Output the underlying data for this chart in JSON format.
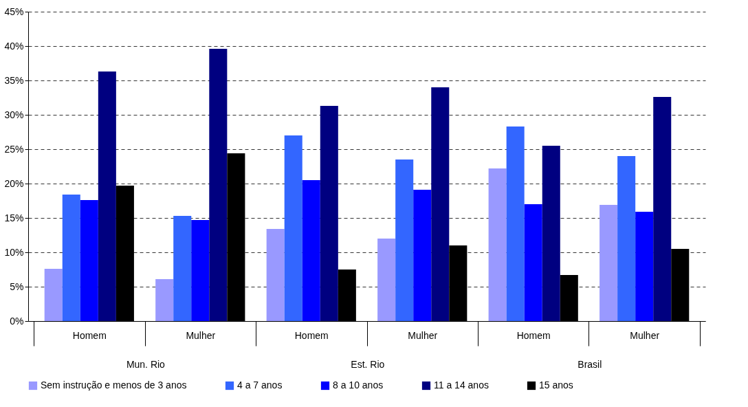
{
  "chart_data": {
    "type": "bar",
    "categories": [
      "Homem",
      "Mulher",
      "Homem",
      "Mulher",
      "Homem",
      "Mulher"
    ],
    "annotations": [
      "Mun. Rio",
      "Est. Rio",
      "Brasil"
    ],
    "series": [
      {
        "name": "Sem instrução e menos de 3 anos",
        "color": "#9999ff",
        "values": [
          7.6,
          6.1,
          13.4,
          12.0,
          22.2,
          16.9
        ]
      },
      {
        "name": "4 a 7 anos",
        "color": "#3366ff",
        "values": [
          18.4,
          15.3,
          27.0,
          23.5,
          28.3,
          24.0
        ]
      },
      {
        "name": "8 a 10 anos",
        "color": "#0000ff",
        "values": [
          17.6,
          14.7,
          20.5,
          19.1,
          17.0,
          15.9
        ]
      },
      {
        "name": "11 a 14 anos",
        "color": "#000080",
        "values": [
          36.3,
          39.6,
          31.3,
          34.0,
          25.5,
          32.6
        ]
      },
      {
        "name": "15 anos",
        "color": "#000000",
        "values": [
          19.7,
          24.4,
          7.5,
          11.0,
          6.7,
          10.5
        ]
      }
    ],
    "ylim": [
      0,
      45
    ],
    "yticks": [
      {
        "value": 0,
        "label": "0%"
      },
      {
        "value": 5,
        "label": "5%"
      },
      {
        "value": 10,
        "label": "10%"
      },
      {
        "value": 15,
        "label": "15%"
      },
      {
        "value": 20,
        "label": "20%"
      },
      {
        "value": 25,
        "label": "25%"
      },
      {
        "value": 30,
        "label": "30%"
      },
      {
        "value": 35,
        "label": "35%"
      },
      {
        "value": 40,
        "label": "40%"
      },
      {
        "value": 45,
        "label": "45%"
      }
    ],
    "grid": "y",
    "legend": "bottom"
  }
}
